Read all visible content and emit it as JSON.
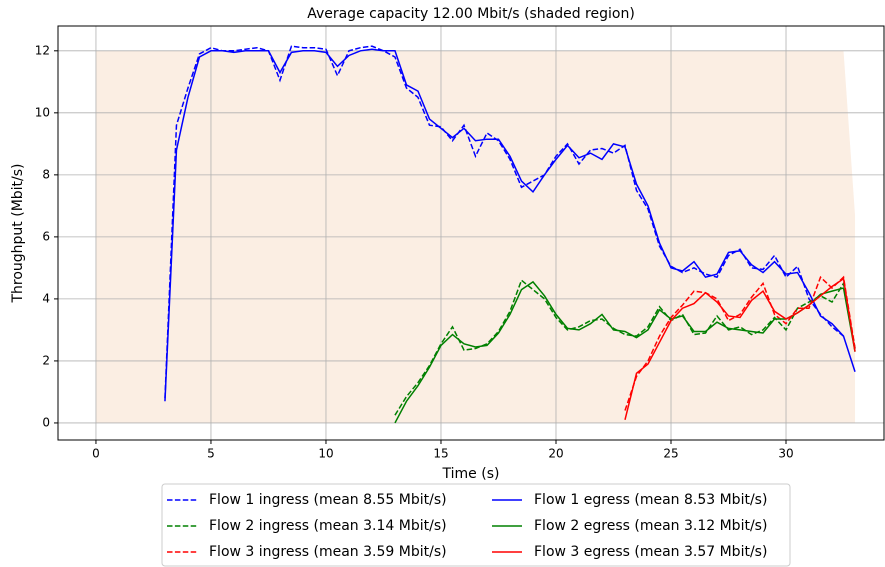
{
  "chart_data": {
    "type": "line",
    "title": "Average capacity 12.00 Mbit/s (shaded region)",
    "xlabel": "Time (s)",
    "ylabel": "Throughput (Mbit/s)",
    "xlim": [
      -1.65,
      34.26
    ],
    "ylim": [
      -0.55,
      12.8
    ],
    "xticks": [
      0,
      5,
      10,
      15,
      20,
      25,
      30
    ],
    "yticks": [
      0,
      2,
      4,
      6,
      8,
      10,
      12
    ],
    "grid": true,
    "legend": "below",
    "shaded_region": {
      "color": "#fbeee3",
      "x": [
        0,
        32.5,
        33,
        33
      ],
      "values": [
        12,
        12,
        6.7,
        0
      ]
    },
    "series": [
      {
        "name": "Flow 1 ingress (mean 8.55 Mbit/s)",
        "color": "#0000ff",
        "dashed": true,
        "x": [
          3,
          3.5,
          4,
          4.5,
          5,
          5.5,
          6,
          6.5,
          7,
          7.5,
          8,
          8.5,
          9,
          9.5,
          10,
          10.5,
          11,
          11.5,
          12,
          12.5,
          13,
          13.5,
          14,
          14.5,
          15,
          15.5,
          16,
          16.5,
          17,
          17.5,
          18,
          18.5,
          19,
          19.5,
          20,
          20.5,
          21,
          21.5,
          22,
          22.5,
          23,
          23.5,
          24,
          24.5,
          25,
          25.5,
          26,
          26.5,
          27,
          27.5,
          28,
          28.5,
          29,
          29.5,
          30,
          30.5,
          31,
          31.5,
          32,
          32.5
        ],
        "values": [
          0.8,
          9.6,
          10.8,
          11.9,
          12.1,
          12,
          12,
          12.05,
          12.1,
          12,
          11.05,
          12.15,
          12.1,
          12.1,
          12.05,
          11.2,
          12,
          12.1,
          12.15,
          12,
          11.8,
          10.8,
          10.5,
          9.6,
          9.55,
          9.1,
          9.6,
          8.6,
          9.35,
          9.1,
          8.5,
          7.6,
          7.8,
          8,
          8.6,
          9,
          8.35,
          8.8,
          8.85,
          8.7,
          8.95,
          7.5,
          6.9,
          5.7,
          5.05,
          4.85,
          5,
          4.8,
          4.7,
          5.4,
          5.6,
          5,
          4.95,
          5.4,
          4.7,
          5.05,
          4,
          3.5,
          3.1,
          2.8
        ]
      },
      {
        "name": "Flow 2 ingress (mean 3.14 Mbit/s)",
        "color": "#008000",
        "dashed": true,
        "x": [
          13,
          13.5,
          14,
          14.5,
          15,
          15.5,
          16,
          16.5,
          17,
          17.5,
          18,
          18.5,
          19,
          19.5,
          20,
          20.5,
          21,
          21.5,
          22,
          22.5,
          23,
          23.5,
          24,
          24.5,
          25,
          25.5,
          26,
          26.5,
          27,
          27.5,
          28,
          28.5,
          29,
          29.5,
          30,
          30.5,
          31,
          31.5,
          32,
          32.5,
          33
        ],
        "values": [
          0.25,
          0.85,
          1.3,
          1.85,
          2.55,
          3.1,
          2.35,
          2.4,
          2.55,
          2.95,
          3.6,
          4.6,
          4.3,
          4,
          3.4,
          3,
          3.1,
          3.3,
          3.35,
          3.05,
          2.85,
          2.8,
          3.1,
          3.75,
          3.3,
          3.5,
          2.85,
          2.9,
          3.45,
          3,
          3.1,
          2.85,
          3,
          3.4,
          3,
          3.7,
          3.9,
          4.1,
          3.9,
          4.5,
          2.4
        ]
      },
      {
        "name": "Flow 3 ingress (mean 3.59 Mbit/s)",
        "color": "#ff0000",
        "dashed": true,
        "x": [
          23,
          23.5,
          24,
          24.5,
          25,
          25.5,
          26,
          26.5,
          27,
          27.5,
          28,
          28.5,
          29,
          29.5,
          30,
          30.5,
          31,
          31.5,
          32,
          32.5,
          33
        ],
        "values": [
          0.4,
          1.5,
          2,
          2.8,
          3.4,
          3.8,
          4.25,
          4.2,
          4,
          3.3,
          3.5,
          4.05,
          4.5,
          3.5,
          3.2,
          3.7,
          3.7,
          4.7,
          4.35,
          4.7,
          2.4
        ]
      },
      {
        "name": "Flow 1 egress (mean 8.53 Mbit/s)",
        "color": "#0000ff",
        "dashed": false,
        "x": [
          3,
          3.5,
          4,
          4.5,
          5,
          5.5,
          6,
          6.5,
          7,
          7.5,
          8,
          8.5,
          9,
          9.5,
          10,
          10.5,
          11,
          11.5,
          12,
          12.5,
          13,
          13.5,
          14,
          14.5,
          15,
          15.5,
          16,
          16.5,
          17,
          17.5,
          18,
          18.5,
          19,
          19.5,
          20,
          20.5,
          21,
          21.5,
          22,
          22.5,
          23,
          23.5,
          24,
          24.5,
          25,
          25.5,
          26,
          26.5,
          27,
          27.5,
          28,
          28.5,
          29,
          29.5,
          30,
          30.5,
          31,
          31.5,
          32,
          32.5,
          33
        ],
        "values": [
          0.7,
          8.8,
          10.5,
          11.8,
          12,
          12,
          11.95,
          12,
          12,
          12,
          11.3,
          11.95,
          12,
          12,
          11.95,
          11.5,
          11.85,
          12,
          12.05,
          12,
          12,
          10.9,
          10.7,
          9.8,
          9.5,
          9.2,
          9.5,
          9.1,
          9.15,
          9.15,
          8.6,
          7.8,
          7.45,
          8,
          8.5,
          8.95,
          8.55,
          8.7,
          8.5,
          9,
          8.9,
          7.7,
          7,
          5.8,
          5,
          4.9,
          5.2,
          4.7,
          4.8,
          5.5,
          5.55,
          5.1,
          4.85,
          5.2,
          4.8,
          4.85,
          4.2,
          3.45,
          3.2,
          2.8,
          1.65
        ]
      },
      {
        "name": "Flow 2 egress (mean 3.12 Mbit/s)",
        "color": "#008000",
        "dashed": false,
        "x": [
          13,
          13.5,
          14,
          14.5,
          15,
          15.5,
          16,
          16.5,
          17,
          17.5,
          18,
          18.5,
          19,
          19.5,
          20,
          20.5,
          21,
          21.5,
          22,
          22.5,
          23,
          23.5,
          24,
          24.5,
          25,
          25.5,
          26,
          26.5,
          27,
          27.5,
          28,
          28.5,
          29,
          29.5,
          30,
          30.5,
          31,
          31.5,
          32,
          32.5,
          33
        ],
        "values": [
          0,
          0.7,
          1.2,
          1.8,
          2.5,
          2.85,
          2.55,
          2.45,
          2.5,
          2.9,
          3.5,
          4.3,
          4.55,
          4.1,
          3.5,
          3.05,
          3,
          3.2,
          3.5,
          3,
          2.95,
          2.75,
          3,
          3.65,
          3.35,
          3.45,
          2.95,
          2.95,
          3.25,
          3.05,
          3,
          2.95,
          2.9,
          3.35,
          3.35,
          3.55,
          3.8,
          4.15,
          4.25,
          4.35,
          2.3
        ]
      },
      {
        "name": "Flow 3 egress (mean 3.57 Mbit/s)",
        "color": "#ff0000",
        "dashed": false,
        "x": [
          23,
          23.5,
          24,
          24.5,
          25,
          25.5,
          26,
          26.5,
          27,
          27.5,
          28,
          28.5,
          29,
          29.5,
          30,
          30.5,
          31,
          31.5,
          32,
          32.5,
          33
        ],
        "values": [
          0.1,
          1.6,
          1.9,
          2.6,
          3.3,
          3.7,
          3.85,
          4.2,
          3.9,
          3.45,
          3.4,
          3.95,
          4.25,
          3.6,
          3.35,
          3.55,
          3.8,
          4.1,
          4.4,
          4.65,
          2.3
        ]
      }
    ]
  }
}
